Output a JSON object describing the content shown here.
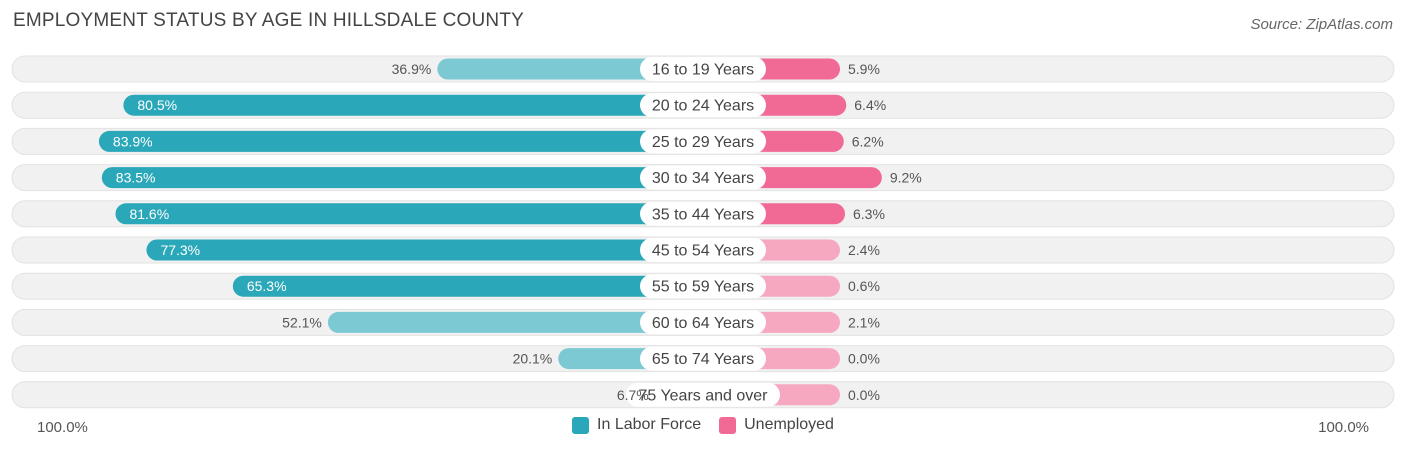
{
  "title": "EMPLOYMENT STATUS BY AGE IN HILLSDALE COUNTY",
  "source": "Source: ZipAtlas.com",
  "colors": {
    "labor_force": "#2aa7b8",
    "labor_force_light": "#7cc9d3",
    "unemployed": "#f06a95",
    "unemployed_light": "#f6a8c1",
    "row_bg": "#f1f1f1",
    "row_border": "#e2e2e2"
  },
  "chart_data": {
    "type": "bar",
    "orientation": "diverging-horizontal",
    "title": "EMPLOYMENT STATUS BY AGE IN HILLSDALE COUNTY",
    "categories": [
      "16 to 19 Years",
      "20 to 24 Years",
      "25 to 29 Years",
      "30 to 34 Years",
      "35 to 44 Years",
      "45 to 54 Years",
      "55 to 59 Years",
      "60 to 64 Years",
      "65 to 74 Years",
      "75 Years and over"
    ],
    "series": [
      {
        "name": "In Labor Force",
        "values": [
          36.9,
          80.5,
          83.9,
          83.5,
          81.6,
          77.3,
          65.3,
          52.1,
          20.1,
          6.7
        ],
        "labels": [
          "36.9%",
          "80.5%",
          "83.9%",
          "83.5%",
          "81.6%",
          "77.3%",
          "65.3%",
          "52.1%",
          "20.1%",
          "6.7%"
        ]
      },
      {
        "name": "Unemployed",
        "values": [
          5.9,
          6.4,
          6.2,
          9.2,
          6.3,
          2.4,
          0.6,
          2.1,
          0.0,
          0.0
        ],
        "labels": [
          "5.9%",
          "6.4%",
          "6.2%",
          "9.2%",
          "6.3%",
          "2.4%",
          "0.6%",
          "2.1%",
          "0.0%",
          "0.0%"
        ]
      }
    ],
    "xlim": [
      0,
      100
    ],
    "axis_left_label": "100.0%",
    "axis_right_label": "100.0%",
    "legend": [
      "In Labor Force",
      "Unemployed"
    ],
    "legend_position": "bottom-center"
  }
}
